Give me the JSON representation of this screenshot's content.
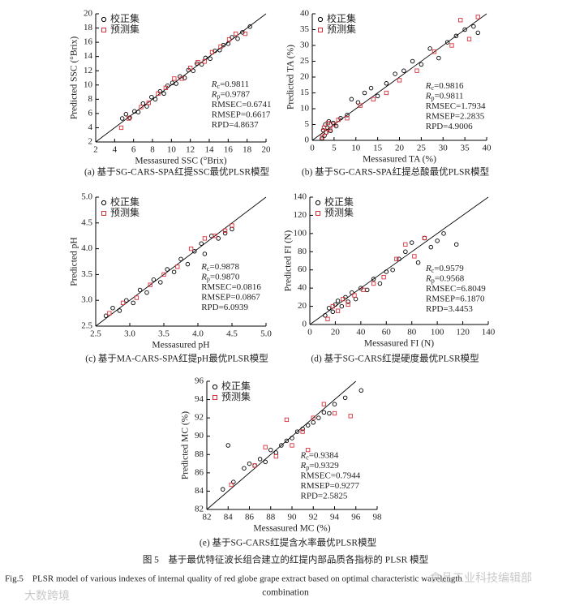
{
  "chart_data": [
    {
      "type": "scatter",
      "caption": "(a) 基于SG-CARS-SPA红提SSC最优PLSR模型",
      "x_label": "Messasured SSC (°Brix)",
      "y_label": "Predicted SSC (°Brix)",
      "xlim": [
        2,
        20
      ],
      "ylim": [
        2,
        20
      ],
      "xticks": [
        2,
        4,
        6,
        8,
        10,
        12,
        14,
        16,
        18,
        20
      ],
      "yticks": [
        2,
        4,
        6,
        8,
        10,
        12,
        14,
        16,
        18,
        20
      ],
      "series": [
        {
          "name": "校正集",
          "color": "#000000",
          "marker": "circle",
          "x": [
            4.8,
            5.2,
            5.6,
            6.1,
            6.5,
            7.0,
            7.4,
            7.9,
            8.3,
            8.8,
            9.2,
            9.6,
            10.1,
            10.5,
            10.9,
            11.4,
            11.8,
            12.3,
            12.7,
            13.2,
            13.6,
            14.1,
            14.6,
            15.1,
            15.5,
            16.0,
            16.4,
            17.0,
            17.5,
            18.3
          ],
          "values": [
            5.3,
            5.9,
            5.4,
            6.3,
            6.2,
            7.4,
            7.0,
            8.3,
            8.0,
            9.1,
            8.8,
            9.9,
            10.3,
            10.2,
            11.2,
            11.0,
            12.1,
            12.0,
            13.0,
            12.9,
            13.8,
            13.7,
            14.8,
            14.9,
            15.6,
            15.8,
            16.7,
            16.5,
            17.4,
            18.2
          ]
        },
        {
          "name": "预测集",
          "color": "#d9303a",
          "marker": "square",
          "x": [
            4.7,
            5.5,
            6.8,
            7.6,
            8.6,
            9.4,
            10.3,
            11.1,
            12.0,
            12.8,
            13.5,
            14.3,
            15.2,
            16.1,
            16.8,
            17.8
          ],
          "values": [
            4.0,
            5.3,
            6.9,
            7.5,
            8.8,
            9.6,
            10.9,
            10.9,
            12.4,
            13.2,
            13.3,
            14.6,
            15.4,
            16.4,
            17.2,
            17.2
          ]
        }
      ],
      "stats": [
        {
          "symbol": "R",
          "subscript": "c",
          "text": "=0.9811"
        },
        {
          "symbol": "R",
          "subscript": "p",
          "text": "=0.9787"
        },
        {
          "text": "RMSEC=0.6741"
        },
        {
          "text": "RMSEP=0.6617"
        },
        {
          "text": "RPD=4.8637"
        }
      ]
    },
    {
      "type": "scatter",
      "caption": "(b) 基于SG-CARS-SPA红提总酸最优PLSR模型",
      "x_label": "Messasured TA (%)",
      "y_label": "Predicted TA (%)",
      "xlim": [
        0,
        40
      ],
      "ylim": [
        0,
        40
      ],
      "xticks": [
        0,
        5,
        10,
        15,
        20,
        25,
        30,
        35,
        40
      ],
      "yticks": [
        0,
        5,
        10,
        15,
        20,
        25,
        30,
        35,
        40
      ],
      "series": [
        {
          "name": "校正集",
          "color": "#000000",
          "marker": "circle",
          "x": [
            2.2,
            2.5,
            2.8,
            3.0,
            3.2,
            3.5,
            3.8,
            4.2,
            4.8,
            5.5,
            6.5,
            8,
            9,
            10.5,
            12,
            13.5,
            15,
            17,
            19,
            21,
            23,
            25,
            27,
            29,
            31,
            33,
            35,
            37,
            38
          ],
          "values": [
            0.5,
            3.2,
            1.5,
            5,
            2.5,
            4,
            6,
            3,
            5.5,
            4.5,
            7,
            8,
            13,
            12,
            15,
            16.5,
            14,
            18,
            21,
            22,
            25,
            24,
            29,
            26,
            31,
            33,
            35,
            36,
            34
          ]
        },
        {
          "name": "预测集",
          "color": "#d9303a",
          "marker": "square",
          "x": [
            2.3,
            2.7,
            3.1,
            3.6,
            4.1,
            5,
            6,
            8,
            11,
            14,
            17,
            20,
            24,
            28,
            32,
            34,
            36,
            38
          ],
          "values": [
            1,
            4,
            2.5,
            5.5,
            3.5,
            5,
            6.5,
            7,
            11,
            13,
            15,
            19,
            22,
            28,
            30,
            38,
            32,
            39
          ]
        }
      ],
      "stats": [
        {
          "symbol": "R",
          "subscript": "c",
          "text": "=0.9816"
        },
        {
          "symbol": "R",
          "subscript": "p",
          "text": "=0.9811"
        },
        {
          "text": "RMSEC=1.7934"
        },
        {
          "text": "RMSEP=2.2835"
        },
        {
          "text": "RPD=4.9006"
        }
      ]
    },
    {
      "type": "scatter",
      "caption": "(c) 基于MA-CARS-SPA红提pH最优PLSR模型",
      "x_label": "Messasured pH",
      "y_label": "Predicted pH",
      "xlim": [
        2.5,
        5
      ],
      "ylim": [
        2.5,
        5
      ],
      "xticks": [
        2.5,
        {
          "value": 3,
          "label": "3.0"
        },
        3.5,
        {
          "value": 4,
          "label": "4.0"
        },
        4.5,
        {
          "value": 5,
          "label": "5.0"
        }
      ],
      "yticks": [
        2.5,
        {
          "value": 3,
          "label": "3.0"
        },
        3.5,
        {
          "value": 4,
          "label": "4.0"
        },
        4.5,
        {
          "value": 5,
          "label": "5.0"
        }
      ],
      "series": [
        {
          "name": "校正集",
          "color": "#000000",
          "marker": "circle",
          "x": [
            2.65,
            2.75,
            2.85,
            2.95,
            3.05,
            3.15,
            3.25,
            3.35,
            3.45,
            3.55,
            3.65,
            3.75,
            3.85,
            3.95,
            4.05,
            4.1,
            4.2,
            4.3,
            4.4,
            4.5
          ],
          "values": [
            2.7,
            2.85,
            2.8,
            3.0,
            2.95,
            3.2,
            3.15,
            3.4,
            3.35,
            3.6,
            3.55,
            3.8,
            3.7,
            3.95,
            4.1,
            3.9,
            4.25,
            4.2,
            4.3,
            4.38
          ]
        },
        {
          "name": "预测集",
          "color": "#d9303a",
          "marker": "square",
          "x": [
            2.7,
            2.9,
            3.1,
            3.3,
            3.5,
            3.7,
            3.9,
            4.1,
            4.25,
            4.4,
            4.5
          ],
          "values": [
            2.75,
            2.95,
            3.05,
            3.3,
            3.5,
            3.65,
            4.0,
            4.2,
            4.25,
            4.35,
            4.45
          ]
        }
      ],
      "stats": [
        {
          "symbol": "R",
          "subscript": "c",
          "text": "=0.9878"
        },
        {
          "symbol": "R",
          "subscript": "p",
          "text": "=0.9870"
        },
        {
          "text": "RMSEC=0.0816"
        },
        {
          "text": "RMSEP=0.0867"
        },
        {
          "text": "RPD=6.0939"
        }
      ]
    },
    {
      "type": "scatter",
      "caption": "(d) 基于SG-CARS红提硬度最优PLSR模型",
      "x_label": "Messasured FI (N)",
      "y_label": "Predicted FI (N)",
      "xlim": [
        0,
        140
      ],
      "ylim": [
        0,
        140
      ],
      "xticks": [
        0,
        20,
        40,
        60,
        80,
        100,
        120,
        140
      ],
      "yticks": [
        0,
        20,
        40,
        60,
        80,
        100,
        120,
        140
      ],
      "series": [
        {
          "name": "校正集",
          "color": "#000000",
          "marker": "circle",
          "x": [
            12,
            15,
            18,
            20,
            22,
            25,
            28,
            30,
            33,
            36,
            40,
            45,
            50,
            55,
            60,
            65,
            70,
            75,
            80,
            85,
            90,
            95,
            100,
            105,
            115
          ],
          "values": [
            10,
            18,
            14,
            22,
            26,
            20,
            30,
            25,
            35,
            28,
            40,
            38,
            50,
            45,
            58,
            60,
            72,
            80,
            90,
            68,
            95,
            85,
            92,
            100,
            88
          ]
        },
        {
          "name": "预测集",
          "color": "#d9303a",
          "marker": "square",
          "x": [
            14,
            18,
            22,
            26,
            30,
            35,
            42,
            50,
            58,
            68,
            75,
            82,
            90
          ],
          "values": [
            6,
            20,
            15,
            28,
            22,
            32,
            38,
            45,
            52,
            72,
            88,
            75,
            95
          ]
        }
      ],
      "stats": [
        {
          "symbol": "R",
          "subscript": "c",
          "text": "=0.9579"
        },
        {
          "symbol": "R",
          "subscript": "p",
          "text": "=0.9568"
        },
        {
          "text": "RMSEC=6.8049"
        },
        {
          "text": "RMSEP=6.1870"
        },
        {
          "text": "RPD=3.4453"
        }
      ]
    },
    {
      "type": "scatter",
      "caption": "(e) 基于SG-CARS红提含水率最优PLSR模型",
      "x_label": "Messasured MC (%)",
      "y_label": "Predicted MC (%)",
      "xlim": [
        82,
        98
      ],
      "ylim": [
        82,
        96
      ],
      "xticks": [
        82,
        84,
        86,
        88,
        90,
        92,
        94,
        96,
        98
      ],
      "yticks": [
        82,
        84,
        86,
        88,
        90,
        92,
        94,
        96
      ],
      "series": [
        {
          "name": "校正集",
          "color": "#000000",
          "marker": "circle",
          "x": [
            83.5,
            84,
            84.5,
            85.5,
            86,
            86.5,
            87,
            87.5,
            88,
            88.5,
            89,
            89.5,
            90,
            90.5,
            91,
            91.5,
            92,
            92.5,
            93,
            93.5,
            94,
            95,
            96.5
          ],
          "values": [
            84.2,
            89,
            85,
            86.5,
            87,
            86.8,
            87.5,
            87.2,
            88.5,
            88.2,
            89,
            89.5,
            89.8,
            90.5,
            90.8,
            91.2,
            91.5,
            92,
            92.6,
            92.5,
            93.5,
            94.2,
            95
          ]
        },
        {
          "name": "预测集",
          "color": "#d9303a",
          "marker": "square",
          "x": [
            84.3,
            86.5,
            87.5,
            88.5,
            89.5,
            90,
            91,
            91.5,
            92,
            93,
            94,
            95.5
          ],
          "values": [
            84.7,
            86.8,
            88.8,
            87.8,
            91.8,
            89,
            90.5,
            88.5,
            92,
            93.5,
            92.5,
            92.2
          ]
        }
      ],
      "stats": [
        {
          "symbol": "R",
          "subscript": "c",
          "text": "=0.9384"
        },
        {
          "symbol": "R",
          "subscript": "p",
          "text": "=0.9329"
        },
        {
          "text": "RMSEC=0.7944"
        },
        {
          "text": "RMSEP=0.9277"
        },
        {
          "text": "RPD=2.5825"
        }
      ]
    }
  ],
  "figure_caption_cn": "图 5　基于最优特征波长组合建立的红提内部品质各指标的 PLSR 模型",
  "figure_caption_en": [
    "Fig.5　PLSR model of various indexes of internal quality of red globe grape extract based on optimal characteristic wavelength",
    "combination"
  ],
  "watermarks": [
    "大数跨境",
    "食品工业科技编辑部"
  ]
}
